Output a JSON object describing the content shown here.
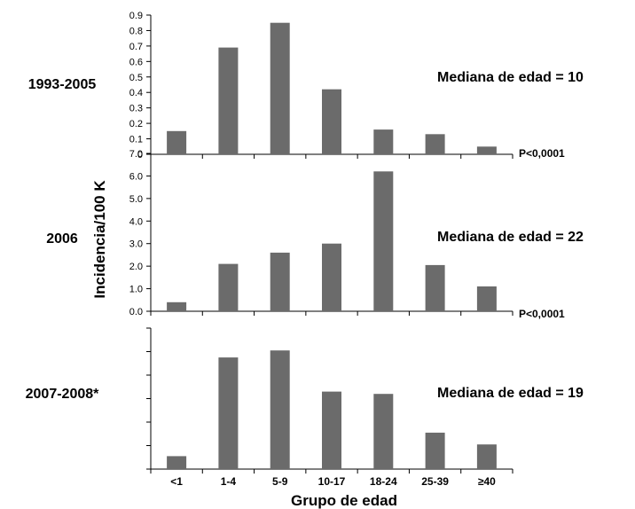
{
  "chart_data": {
    "type": "bar",
    "xlabel": "Grupo de edad",
    "ylabel": "Incidencia/100 K",
    "categories": [
      "<1",
      "1-4",
      "5-9",
      "10-17",
      "18-24",
      "25-39",
      "≥40"
    ],
    "bar_color": "#6b6b6b",
    "panels": [
      {
        "period": "1993-2005",
        "median_label": "Mediana de edad  = 10",
        "p_value": "P<0,0001",
        "ylim": [
          0,
          0.9
        ],
        "yticks": [
          "0",
          "0.1",
          "0.2",
          "0.3",
          "0.4",
          "0.5",
          "0.6",
          "0.7",
          "0.8",
          "0.9"
        ],
        "values": [
          0.15,
          0.69,
          0.85,
          0.42,
          0.16,
          0.13,
          0.05
        ]
      },
      {
        "period": "2006",
        "median_label": "Mediana de edad  = 22",
        "p_value": "P<0,0001",
        "ylim": [
          0,
          7
        ],
        "yticks": [
          "0.0",
          "1.0",
          "2.0",
          "3.0",
          "4.0",
          "5.0",
          "6.0",
          "7.0"
        ],
        "values": [
          0.4,
          2.1,
          2.6,
          3.0,
          6.2,
          2.05,
          1.1
        ]
      },
      {
        "period": "2007-2008*",
        "median_label": "Mediana de edad  = 19",
        "p_value": "",
        "ylim": [
          0,
          6
        ],
        "yticks": [
          "",
          "",
          "",
          "",
          "",
          "",
          ""
        ],
        "values": [
          0.55,
          4.75,
          5.05,
          3.3,
          3.2,
          1.55,
          1.05
        ]
      }
    ]
  }
}
